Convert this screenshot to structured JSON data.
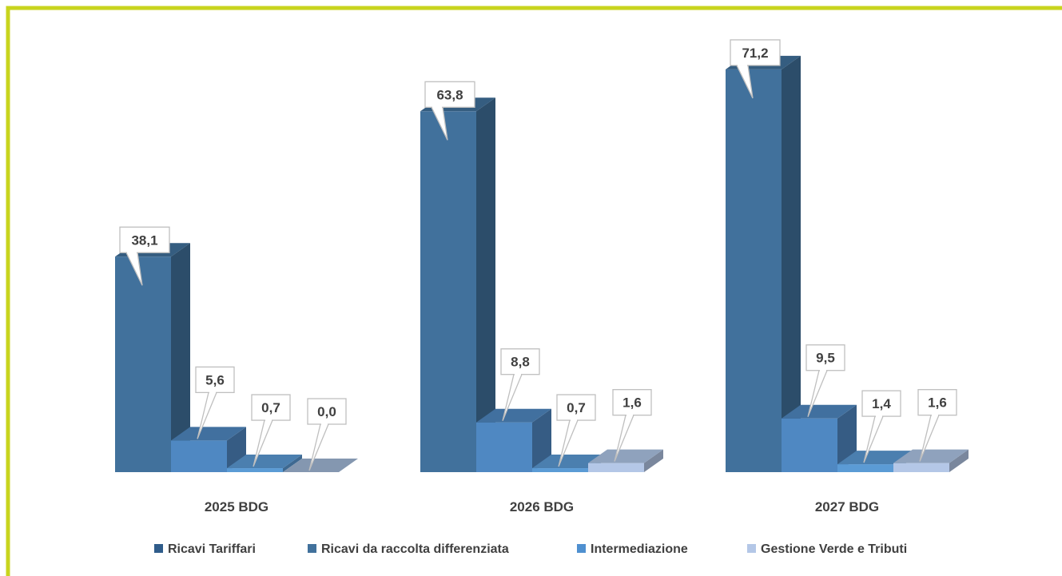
{
  "chart_data": {
    "type": "bar",
    "style": "3d-clustered-column",
    "categories": [
      "2025 BDG",
      "2026 BDG",
      "2027 BDG"
    ],
    "series": [
      {
        "name": "Ricavi Tariffari",
        "values": [
          38.1,
          63.8,
          71.2
        ],
        "labels": [
          "38,1",
          "63,8",
          "71,2"
        ],
        "color": "#41719C"
      },
      {
        "name": "Ricavi da raccolta differenziata",
        "values": [
          5.6,
          8.8,
          9.5
        ],
        "labels": [
          "5,6",
          "8,8",
          "9,5"
        ],
        "color": "#4F88C2"
      },
      {
        "name": "Intermediazione",
        "values": [
          0.7,
          0.7,
          1.4
        ],
        "labels": [
          "0,7",
          "0,7",
          "1,4"
        ],
        "color": "#5B9BD5"
      },
      {
        "name": "Gestione Verde e Tributi",
        "values": [
          0.0,
          1.6,
          1.6
        ],
        "labels": [
          "0,0",
          "1,6",
          "1,6"
        ],
        "color": "#B4C7E7"
      }
    ],
    "ylim": [
      0,
      75
    ],
    "grid": false,
    "legend_position": "bottom",
    "data_labels": "callouts",
    "frame_color": "#C8D41E"
  }
}
